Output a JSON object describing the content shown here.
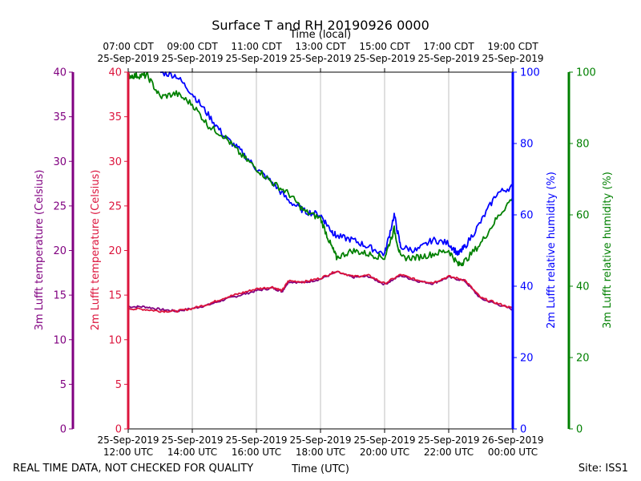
{
  "chart_data": {
    "type": "line",
    "title": "Surface T and RH 20190926 0000",
    "top_xlabel": "Time (local)",
    "bottom_xlabel": "Time (UTC)",
    "footer_left": "REAL TIME DATA, NOT CHECKED FOR QUALITY",
    "footer_right": "Site: ISS1",
    "x_range_hours": [
      12,
      24
    ],
    "bottom_ticks": [
      {
        "h": 12,
        "line1": "25-Sep-2019",
        "line2": "12:00 UTC"
      },
      {
        "h": 14,
        "line1": "25-Sep-2019",
        "line2": "14:00 UTC"
      },
      {
        "h": 16,
        "line1": "25-Sep-2019",
        "line2": "16:00 UTC"
      },
      {
        "h": 18,
        "line1": "25-Sep-2019",
        "line2": "18:00 UTC"
      },
      {
        "h": 20,
        "line1": "25-Sep-2019",
        "line2": "20:00 UTC"
      },
      {
        "h": 22,
        "line1": "25-Sep-2019",
        "line2": "22:00 UTC"
      },
      {
        "h": 24,
        "line1": "26-Sep-2019",
        "line2": "00:00 UTC"
      }
    ],
    "top_ticks": [
      {
        "h": 12,
        "line1": "07:00 CDT",
        "line2": "25-Sep-2019"
      },
      {
        "h": 14,
        "line1": "09:00 CDT",
        "line2": "25-Sep-2019"
      },
      {
        "h": 16,
        "line1": "11:00 CDT",
        "line2": "25-Sep-2019"
      },
      {
        "h": 18,
        "line1": "13:00 CDT",
        "line2": "25-Sep-2019"
      },
      {
        "h": 20,
        "line1": "15:00 CDT",
        "line2": "25-Sep-2019"
      },
      {
        "h": 22,
        "line1": "17:00 CDT",
        "line2": "25-Sep-2019"
      },
      {
        "h": 24,
        "line1": "19:00 CDT",
        "line2": "25-Sep-2019"
      }
    ],
    "axes": {
      "temp3m": {
        "label": "3m Lufft temperature (Celsius)",
        "color": "#800080",
        "ylim": [
          0,
          40
        ],
        "ticks": [
          0,
          5,
          10,
          15,
          20,
          25,
          30,
          35,
          40
        ]
      },
      "temp2m": {
        "label": "2m Lufft temperature (Celsius)",
        "color": "#dc143c",
        "ylim": [
          0,
          40
        ],
        "ticks": [
          0,
          5,
          10,
          15,
          20,
          25,
          30,
          35,
          40
        ]
      },
      "rh2m": {
        "label": "2m Lufft relative humidity (%)",
        "color": "#0000ff",
        "ylim": [
          0,
          100
        ],
        "ticks": [
          0,
          20,
          40,
          60,
          80,
          100
        ]
      },
      "rh3m": {
        "label": "3m Lufft relative humidity (%)",
        "color": "#008000",
        "ylim": [
          0,
          100
        ],
        "ticks": [
          0,
          20,
          40,
          60,
          80,
          100
        ]
      }
    },
    "series": [
      {
        "name": "3m Lufft temperature",
        "axis": "temp3m",
        "color": "#800080",
        "x": [
          12.0,
          12.5,
          13.0,
          13.5,
          14.0,
          14.5,
          15.0,
          15.5,
          16.0,
          16.5,
          16.8,
          17.0,
          17.5,
          18.0,
          18.5,
          19.0,
          19.5,
          20.0,
          20.5,
          21.0,
          21.5,
          22.0,
          22.5,
          23.0,
          23.5,
          24.0
        ],
        "y": [
          13.7,
          13.7,
          13.4,
          13.2,
          13.5,
          13.9,
          14.5,
          15.0,
          15.5,
          15.8,
          15.4,
          16.5,
          16.4,
          16.8,
          17.6,
          17.0,
          17.1,
          16.2,
          17.2,
          16.6,
          16.3,
          17.0,
          16.6,
          14.6,
          14.0,
          13.4
        ]
      },
      {
        "name": "2m Lufft temperature",
        "axis": "temp2m",
        "color": "#dc143c",
        "x": [
          12.0,
          12.5,
          13.0,
          13.5,
          14.0,
          14.5,
          15.0,
          15.5,
          16.0,
          16.5,
          16.8,
          17.0,
          17.5,
          18.0,
          18.5,
          19.0,
          19.5,
          20.0,
          20.5,
          21.0,
          21.5,
          22.0,
          22.5,
          23.0,
          23.5,
          24.0
        ],
        "y": [
          13.5,
          13.4,
          13.2,
          13.2,
          13.5,
          14.0,
          14.7,
          15.2,
          15.7,
          15.9,
          15.5,
          16.6,
          16.5,
          16.9,
          17.7,
          17.1,
          17.2,
          16.3,
          17.3,
          16.7,
          16.4,
          17.1,
          16.7,
          14.7,
          14.1,
          13.5
        ]
      },
      {
        "name": "2m Lufft relative humidity",
        "axis": "rh2m",
        "color": "#0000ff",
        "x": [
          13.0,
          13.5,
          14.0,
          14.5,
          15.0,
          15.5,
          16.0,
          16.5,
          17.0,
          17.5,
          18.0,
          18.3,
          18.5,
          19.0,
          19.5,
          20.0,
          20.3,
          20.5,
          21.0,
          21.5,
          22.0,
          22.3,
          22.5,
          23.0,
          23.5,
          24.0
        ],
        "y": [
          100,
          99,
          94,
          88,
          82,
          78,
          73,
          69,
          64,
          61,
          60,
          56,
          54,
          53,
          51,
          49,
          60,
          51,
          50,
          53,
          52,
          49,
          51,
          58,
          66,
          68
        ]
      },
      {
        "name": "3m Lufft relative humidity",
        "axis": "rh3m",
        "color": "#008000",
        "x": [
          12.0,
          12.3,
          12.6,
          13.0,
          13.5,
          14.0,
          14.5,
          15.0,
          15.5,
          16.0,
          16.5,
          17.0,
          17.5,
          18.0,
          18.3,
          18.5,
          19.0,
          19.5,
          20.0,
          20.3,
          20.5,
          21.0,
          21.5,
          22.0,
          22.3,
          22.5,
          23.0,
          23.5,
          24.0
        ],
        "y": [
          99,
          99,
          99,
          93,
          94,
          91,
          85,
          82,
          77,
          73,
          69,
          66,
          61,
          59,
          52,
          48,
          50,
          49,
          48,
          56,
          48,
          48,
          49,
          50,
          46,
          47,
          52,
          59,
          65
        ]
      }
    ]
  }
}
